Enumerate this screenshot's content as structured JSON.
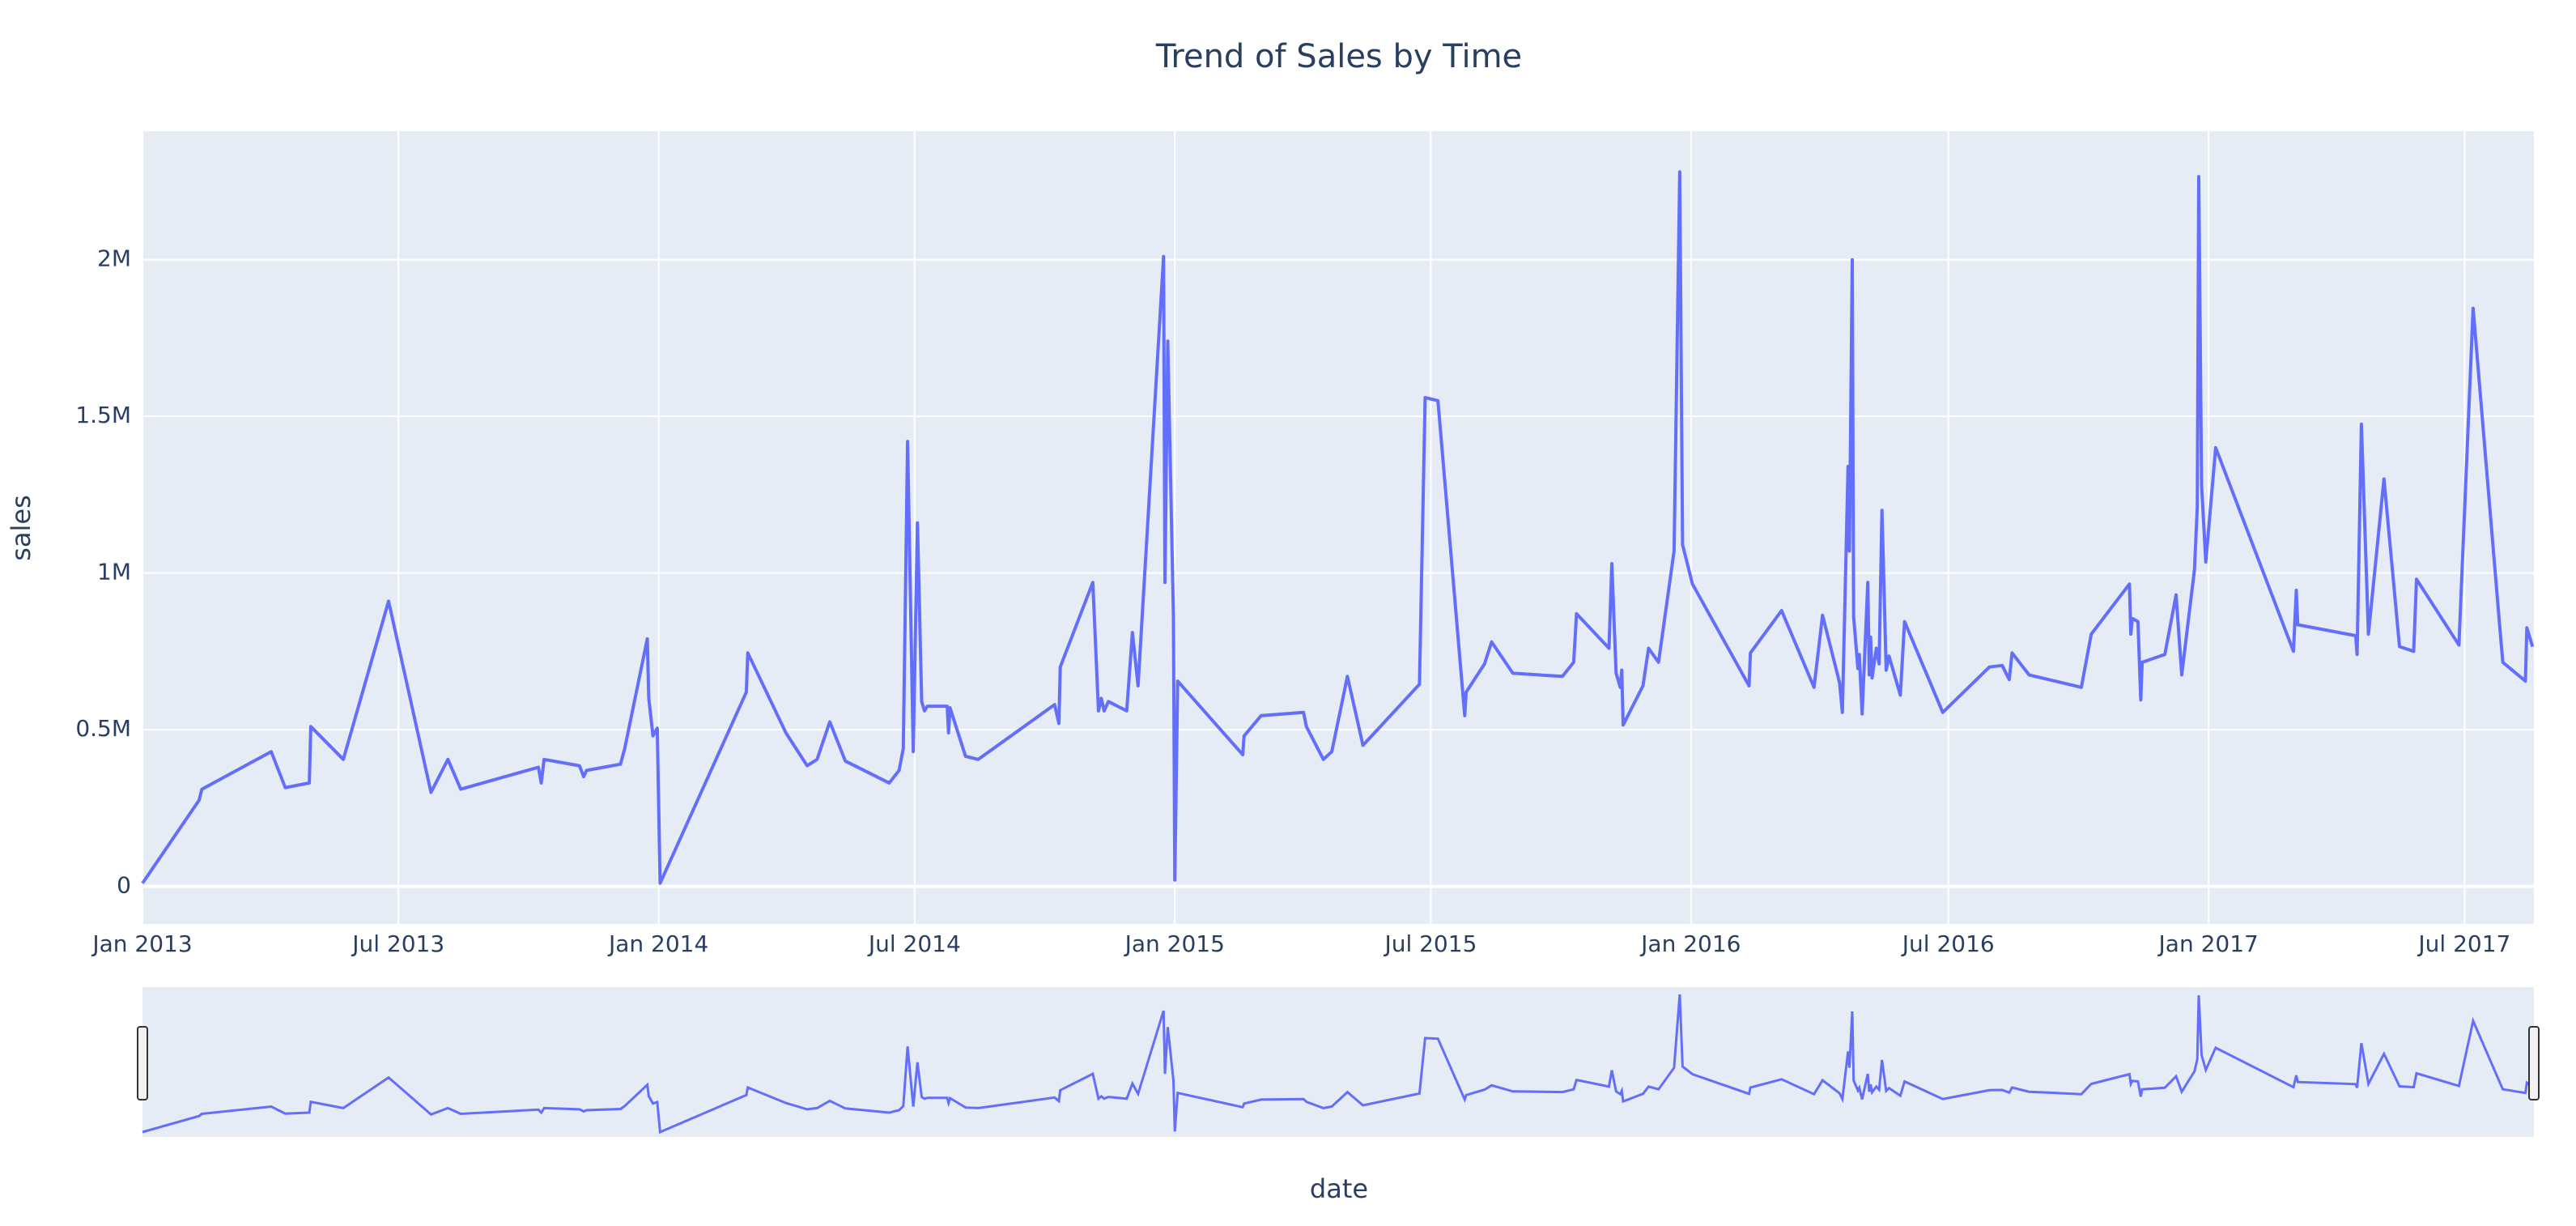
{
  "chart_data": {
    "type": "line",
    "title": "Trend of Sales by Time",
    "x_label": "date",
    "y_label": "sales",
    "color": "#636efa",
    "grid": true,
    "range_slider": true,
    "xlim": [
      "2013-01-01",
      "2017-08-19"
    ],
    "xticks": [
      {
        "value": "2013-01-01",
        "label": "Jan 2013"
      },
      {
        "value": "2013-07-01",
        "label": "Jul 2013"
      },
      {
        "value": "2014-01-01",
        "label": "Jan 2014"
      },
      {
        "value": "2014-07-01",
        "label": "Jul 2014"
      },
      {
        "value": "2015-01-01",
        "label": "Jan 2015"
      },
      {
        "value": "2015-07-01",
        "label": "Jul 2015"
      },
      {
        "value": "2016-01-01",
        "label": "Jan 2016"
      },
      {
        "value": "2016-07-01",
        "label": "Jul 2016"
      },
      {
        "value": "2017-01-01",
        "label": "Jan 2017"
      },
      {
        "value": "2017-07-01",
        "label": "Jul 2017"
      }
    ],
    "ylim": [
      -120000,
      2410000
    ],
    "yticks": [
      0,
      {
        "value": 500000,
        "label": "0.5M"
      },
      {
        "value": 1000000,
        "label": "1M"
      },
      {
        "value": 1500000,
        "label": "1.5M"
      },
      {
        "value": 2000000,
        "label": "2M"
      }
    ],
    "x": [
      "2013-01-01",
      "2013-02-10",
      "2013-02-12",
      "2013-04-02",
      "2013-04-12",
      "2013-04-29",
      "2013-04-30",
      "2013-05-23",
      "2013-06-24",
      "2013-07-24",
      "2013-08-05",
      "2013-08-14",
      "2013-10-08",
      "2013-10-10",
      "2013-10-12",
      "2013-11-06",
      "2013-11-09",
      "2013-11-11",
      "2013-12-05",
      "2013-12-08",
      "2013-12-24",
      "2013-12-25",
      "2013-12-28",
      "2013-12-31",
      "2014-01-02",
      "2014-03-04",
      "2014-03-05",
      "2014-04-01",
      "2014-04-16",
      "2014-04-23",
      "2014-05-02",
      "2014-05-13",
      "2014-06-13",
      "2014-06-20",
      "2014-06-23",
      "2014-06-26",
      "2014-06-30",
      "2014-07-03",
      "2014-07-06",
      "2014-07-08",
      "2014-07-10",
      "2014-07-24",
      "2014-07-25",
      "2014-07-26",
      "2014-08-06",
      "2014-08-15",
      "2014-10-08",
      "2014-10-11",
      "2014-10-12",
      "2014-11-04",
      "2014-11-08",
      "2014-11-10",
      "2014-11-12",
      "2014-11-15",
      "2014-11-28",
      "2014-12-02",
      "2014-12-06",
      "2014-12-24",
      "2014-12-25",
      "2014-12-27",
      "2014-12-31",
      "2015-01-01",
      "2015-01-03",
      "2015-02-18",
      "2015-02-19",
      "2015-03-03",
      "2015-04-02",
      "2015-04-04",
      "2015-04-16",
      "2015-04-22",
      "2015-05-03",
      "2015-05-14",
      "2015-06-23",
      "2015-06-27",
      "2015-07-06",
      "2015-07-25",
      "2015-07-26",
      "2015-08-08",
      "2015-08-13",
      "2015-08-28",
      "2015-10-02",
      "2015-10-10",
      "2015-10-12",
      "2015-11-04",
      "2015-11-06",
      "2015-11-09",
      "2015-11-12",
      "2015-11-13",
      "2015-11-14",
      "2015-11-28",
      "2015-12-02",
      "2015-12-09",
      "2015-12-20",
      "2015-12-24",
      "2015-12-26",
      "2016-01-02",
      "2016-02-11",
      "2016-02-12",
      "2016-03-05",
      "2016-03-28",
      "2016-04-03",
      "2016-04-15",
      "2016-04-17",
      "2016-04-21",
      "2016-04-22",
      "2016-04-24",
      "2016-04-25",
      "2016-04-28",
      "2016-04-29",
      "2016-05-01",
      "2016-05-05",
      "2016-05-06",
      "2016-05-07",
      "2016-05-08",
      "2016-05-11",
      "2016-05-13",
      "2016-05-15",
      "2016-05-18",
      "2016-05-20",
      "2016-05-28",
      "2016-05-31",
      "2016-06-27",
      "2016-07-30",
      "2016-08-08",
      "2016-08-13",
      "2016-08-15",
      "2016-08-27",
      "2016-10-03",
      "2016-10-10",
      "2016-11-06",
      "2016-11-07",
      "2016-11-08",
      "2016-11-12",
      "2016-11-14",
      "2016-11-15",
      "2016-12-01",
      "2016-12-09",
      "2016-12-13",
      "2016-12-22",
      "2016-12-24",
      "2016-12-25",
      "2016-12-27",
      "2016-12-30",
      "2017-01-06",
      "2017-03-02",
      "2017-03-04",
      "2017-03-05",
      "2017-04-15",
      "2017-04-16",
      "2017-04-19",
      "2017-04-24",
      "2017-05-05",
      "2017-05-16",
      "2017-05-26",
      "2017-05-28",
      "2017-06-27",
      "2017-07-07",
      "2017-07-26",
      "2017-07-28",
      "2017-08-13",
      "2017-08-14",
      "2017-08-18"
    ],
    "values": [
      10000,
      275000,
      310000,
      430000,
      315000,
      330000,
      510000,
      405000,
      910000,
      300000,
      405000,
      310000,
      380000,
      330000,
      405000,
      385000,
      350000,
      370000,
      390000,
      440000,
      790000,
      600000,
      480000,
      505000,
      10000,
      620000,
      745000,
      490000,
      385000,
      405000,
      525000,
      400000,
      330000,
      370000,
      440000,
      1420000,
      430000,
      1160000,
      590000,
      560000,
      575000,
      575000,
      490000,
      570000,
      415000,
      405000,
      580000,
      520000,
      700000,
      970000,
      560000,
      600000,
      560000,
      590000,
      560000,
      810000,
      640000,
      2010000,
      970000,
      1740000,
      860000,
      20000,
      655000,
      420000,
      480000,
      545000,
      555000,
      510000,
      405000,
      430000,
      670000,
      450000,
      645000,
      1560000,
      1550000,
      545000,
      620000,
      710000,
      780000,
      680000,
      670000,
      715000,
      870000,
      760000,
      1030000,
      680000,
      635000,
      690000,
      515000,
      640000,
      760000,
      715000,
      1070000,
      2280000,
      1090000,
      965000,
      640000,
      745000,
      880000,
      635000,
      865000,
      650000,
      555000,
      1340000,
      1070000,
      2000000,
      860000,
      695000,
      740000,
      550000,
      970000,
      675000,
      795000,
      665000,
      760000,
      710000,
      1200000,
      690000,
      735000,
      610000,
      845000,
      555000,
      700000,
      705000,
      660000,
      745000,
      675000,
      635000,
      805000,
      965000,
      805000,
      855000,
      845000,
      595000,
      715000,
      740000,
      930000,
      675000,
      1010000,
      1210000,
      2265000,
      1280000,
      1035000,
      1400000,
      750000,
      945000,
      835000,
      800000,
      740000,
      1475000,
      805000,
      1300000,
      765000,
      750000,
      980000,
      770000,
      1845000,
      820000,
      715000,
      655000,
      825000,
      765000
    ]
  }
}
